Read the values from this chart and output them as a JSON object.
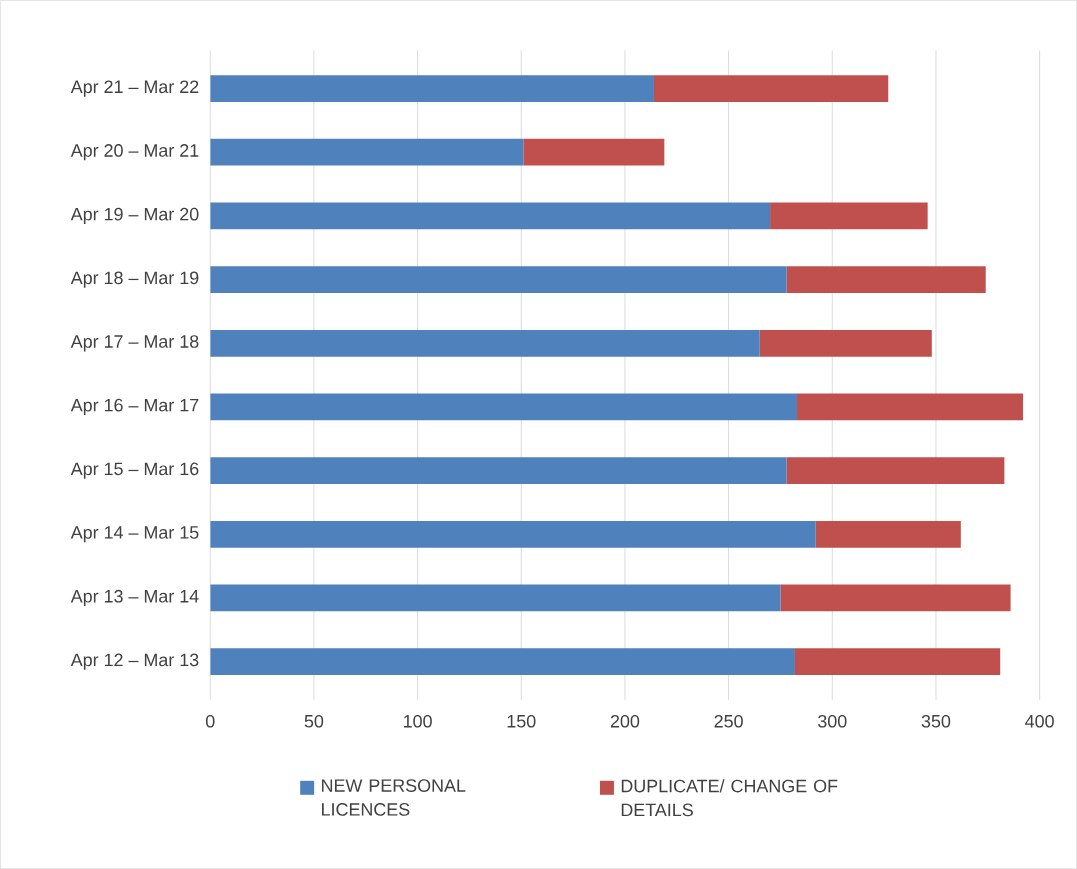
{
  "chart_data": {
    "type": "bar",
    "orientation": "horizontal",
    "stacked": true,
    "categories": [
      "Apr 21 – Mar 22",
      "Apr 20 – Mar 21",
      "Apr 19 – Mar 20",
      "Apr 18 – Mar 19",
      "Apr 17 – Mar 18",
      "Apr 16 – Mar 17",
      "Apr 15 – Mar 16",
      "Apr 14 – Mar 15",
      "Apr 13 – Mar 14",
      "Apr 12 – Mar 13"
    ],
    "series": [
      {
        "name": "NEW PERSONAL LICENCES",
        "color": "#4f81bd",
        "values": [
          214,
          151,
          270,
          278,
          265,
          283,
          278,
          292,
          275,
          282
        ]
      },
      {
        "name": "DUPLICATE/ CHANGE OF DETAILS",
        "color": "#c0504d",
        "values": [
          113,
          68,
          76,
          96,
          83,
          109,
          105,
          70,
          111,
          99
        ]
      }
    ],
    "xlim": [
      0,
      400
    ],
    "xticks": [
      0,
      50,
      100,
      150,
      200,
      250,
      300,
      350,
      400
    ],
    "grid": "x",
    "legend": "bottom"
  }
}
